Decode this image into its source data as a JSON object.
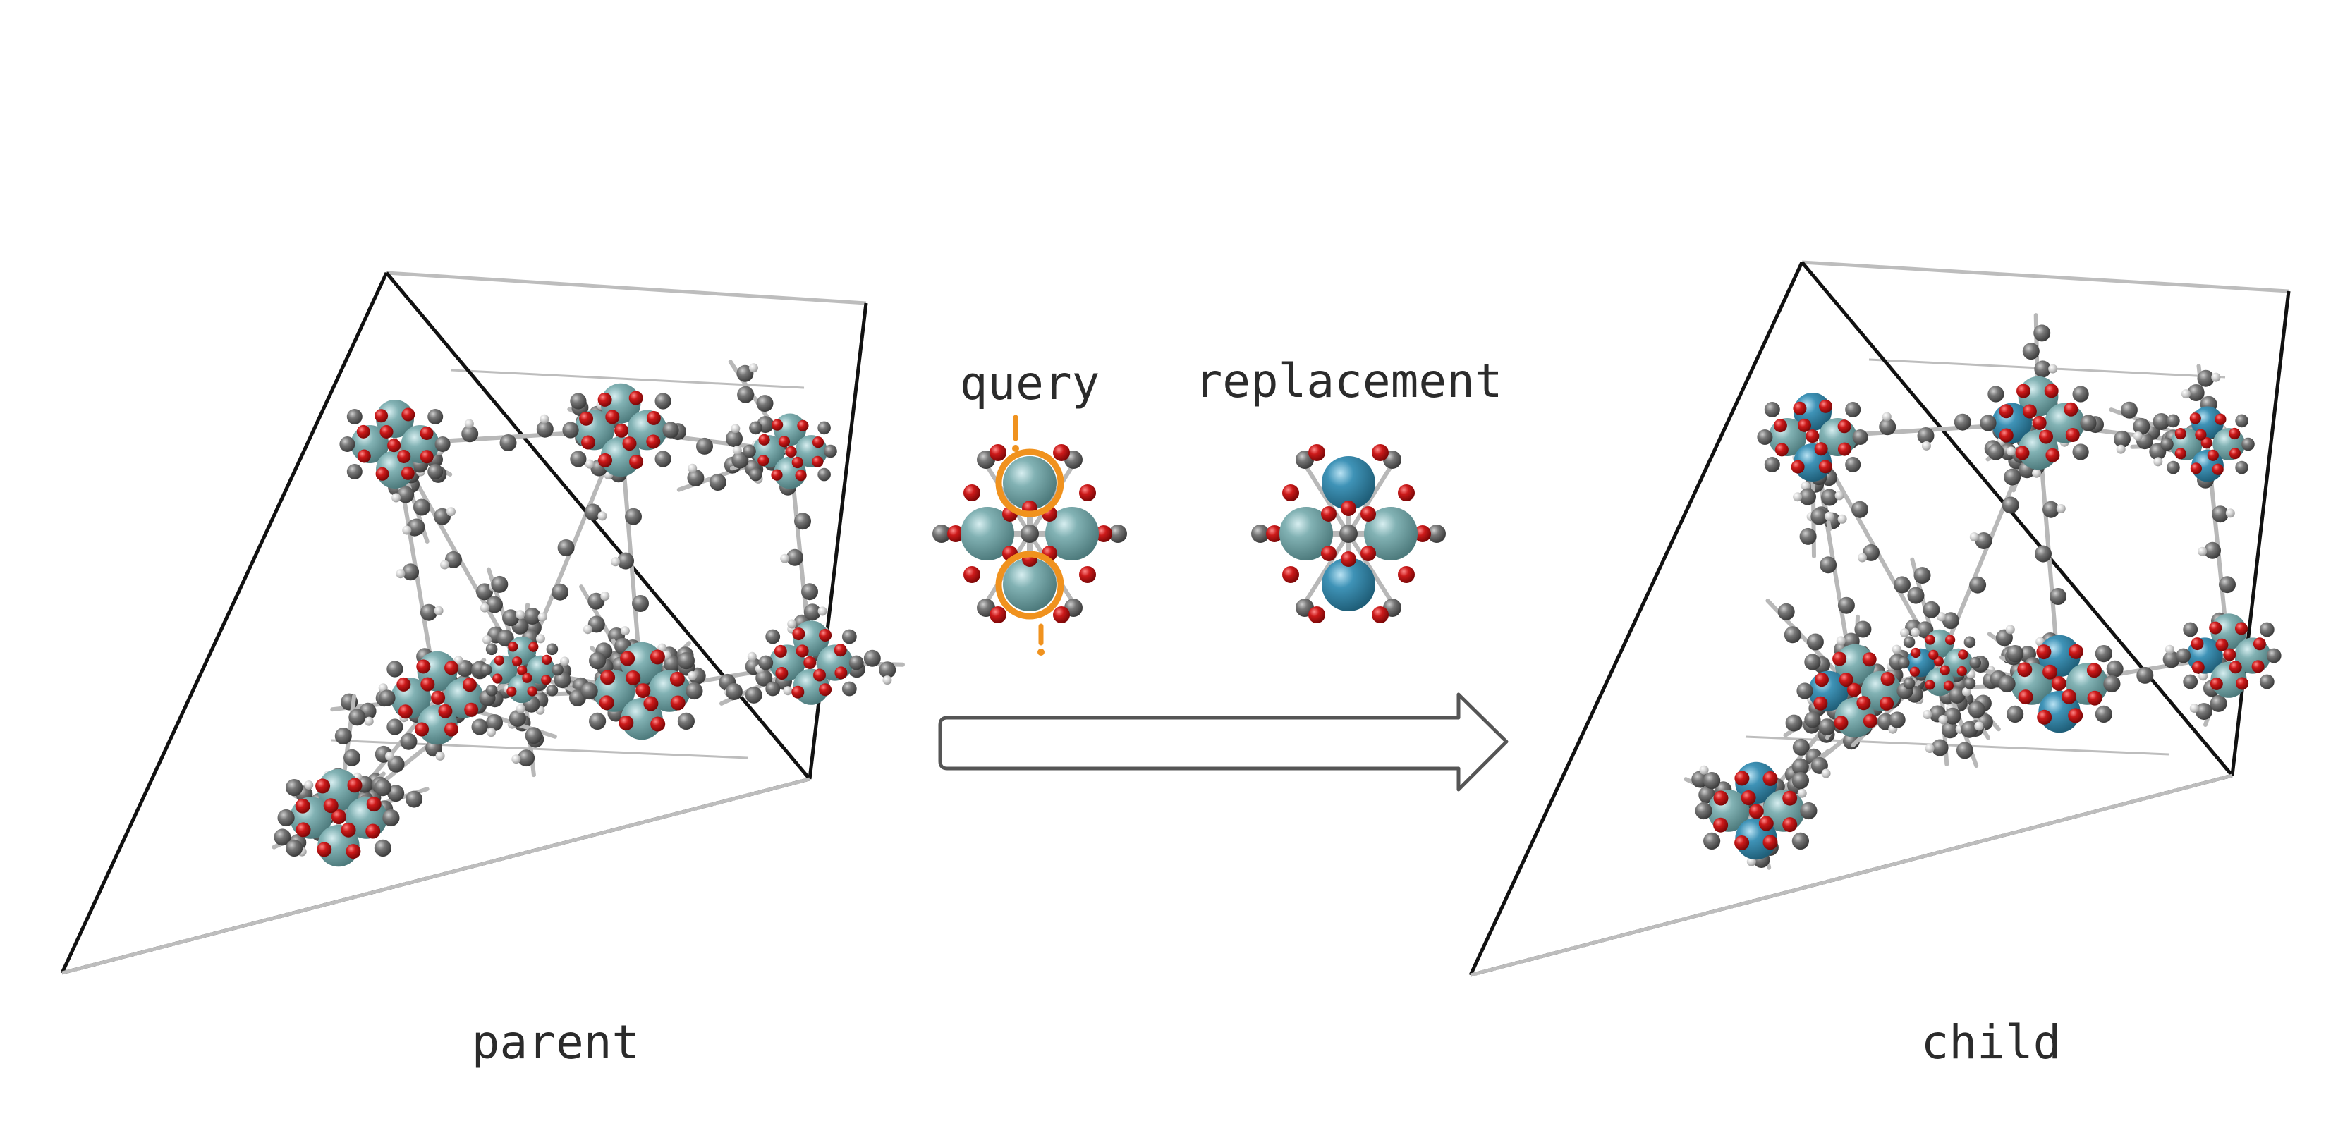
{
  "labels": {
    "parent": "parent",
    "query": "query",
    "replacement": "replacement",
    "child": "child"
  },
  "colors": {
    "metal_original": "#6f9fa1",
    "metal_replaced": "#3a8aad",
    "oxygen": "#c01818",
    "carbon": "#6e6e6e",
    "hydrogen": "#d6d6d6",
    "bond": "#b8b8b8",
    "cell_edge": "#bdbdbd",
    "cell_axis": "#111111",
    "highlight": "#f0921e",
    "arrow_stroke": "#555555"
  },
  "transformation": {
    "from": "query",
    "to": "replacement",
    "highlighted_sites": 2
  }
}
